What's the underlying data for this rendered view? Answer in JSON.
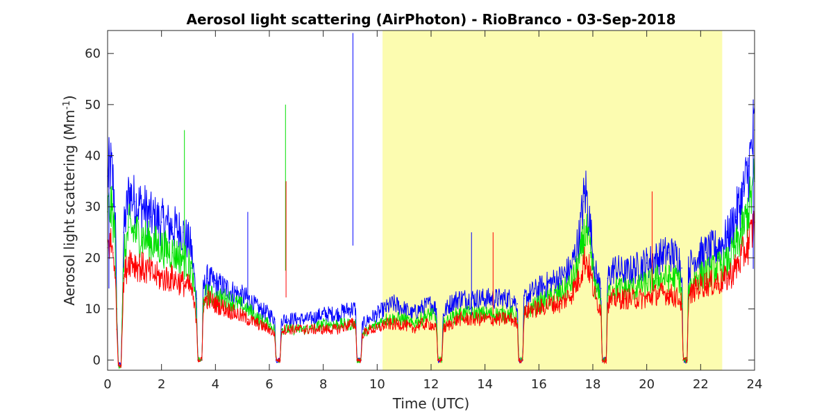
{
  "chart_data": {
    "type": "line",
    "title": "Aerosol light scattering (AirPhoton) - RioBranco - 03-Sep-2018",
    "xlabel": "Time (UTC)",
    "ylabel_main": "Aerosol light scattering (Mm",
    "ylabel_sup": "-1",
    "ylabel_close": ")",
    "xlim": [
      0,
      24
    ],
    "ylim": [
      -2,
      64.5
    ],
    "xticks": [
      0,
      2,
      4,
      6,
      8,
      10,
      12,
      14,
      16,
      18,
      20,
      22,
      24
    ],
    "yticks": [
      0,
      10,
      20,
      30,
      40,
      50,
      60
    ],
    "grid": false,
    "highlight_band": {
      "x0": 10.2,
      "x1": 22.8,
      "color": "#fcfcb0"
    },
    "series": [
      {
        "color": "#0000ff",
        "x": [
          0,
          0.1,
          0.2,
          0.28,
          0.34,
          0.4,
          0.5,
          0.6,
          0.8,
          1.0,
          1.3,
          1.6,
          2.0,
          2.4,
          2.8,
          3.1,
          3.3,
          3.35,
          3.5,
          3.55,
          3.7,
          4.0,
          4.4,
          4.8,
          5.2,
          5.6,
          6.0,
          6.2,
          6.25,
          6.4,
          6.45,
          6.7,
          7.0,
          7.5,
          8.0,
          8.5,
          9.0,
          9.2,
          9.25,
          9.4,
          9.45,
          9.7,
          10.0,
          10.3,
          10.6,
          11.0,
          11.3,
          11.6,
          12.0,
          12.2,
          12.25,
          12.4,
          12.45,
          12.7,
          13.0,
          13.5,
          14.0,
          14.5,
          15.0,
          15.2,
          15.25,
          15.4,
          15.45,
          15.7,
          16.0,
          16.4,
          16.8,
          17.2,
          17.5,
          17.65,
          17.75,
          17.9,
          18.1,
          18.3,
          18.35,
          18.5,
          18.55,
          18.8,
          19.2,
          19.6,
          20.0,
          20.4,
          20.8,
          21.2,
          21.3,
          21.35,
          21.5,
          21.55,
          21.8,
          22.2,
          22.6,
          23.0,
          23.3,
          23.6,
          23.8,
          24.0
        ],
        "y": [
          36,
          38,
          35,
          30,
          10,
          -1,
          -1,
          25,
          33,
          31,
          30,
          28,
          27,
          26,
          25,
          22,
          12,
          0,
          0,
          14,
          16,
          15,
          14,
          13,
          12,
          10,
          9,
          8,
          0,
          0,
          8,
          8,
          8,
          8,
          9,
          9,
          10,
          10,
          0,
          0,
          7,
          8,
          9,
          10,
          11,
          10,
          9,
          10,
          11,
          10,
          0,
          0,
          9,
          11,
          12,
          12,
          12,
          12,
          12,
          11,
          0,
          0,
          12,
          13,
          14,
          15,
          16,
          18,
          24,
          31,
          33,
          26,
          17,
          14,
          0,
          0,
          16,
          18,
          17,
          18,
          19,
          20,
          21,
          20,
          18,
          0,
          0,
          18,
          20,
          21,
          22,
          24,
          28,
          33,
          38,
          45
        ]
      },
      {
        "color": "#00e000",
        "x": [
          0,
          0.1,
          0.2,
          0.28,
          0.34,
          0.4,
          0.5,
          0.6,
          0.8,
          1.0,
          1.3,
          1.6,
          2.0,
          2.4,
          2.8,
          3.1,
          3.3,
          3.35,
          3.5,
          3.55,
          3.7,
          4.0,
          4.4,
          4.8,
          5.2,
          5.6,
          6.0,
          6.2,
          6.25,
          6.4,
          6.45,
          6.7,
          7.0,
          7.5,
          8.0,
          8.5,
          9.0,
          9.2,
          9.25,
          9.4,
          9.45,
          9.7,
          10.0,
          10.3,
          10.6,
          11.0,
          11.3,
          11.6,
          12.0,
          12.2,
          12.25,
          12.4,
          12.45,
          12.7,
          13.0,
          13.5,
          14.0,
          14.5,
          15.0,
          15.2,
          15.25,
          15.4,
          15.45,
          15.7,
          16.0,
          16.4,
          16.8,
          17.2,
          17.5,
          17.65,
          17.75,
          17.9,
          18.1,
          18.3,
          18.35,
          18.5,
          18.55,
          18.8,
          19.2,
          19.6,
          20.0,
          20.4,
          20.8,
          21.2,
          21.3,
          21.35,
          21.5,
          21.55,
          21.8,
          22.2,
          22.6,
          23.0,
          23.3,
          23.6,
          23.8,
          24.0
        ],
        "y": [
          29,
          30,
          28,
          24,
          8,
          -1,
          -1,
          20,
          26,
          25,
          24,
          23,
          22,
          21,
          20,
          18,
          10,
          0,
          0,
          12,
          13,
          12,
          12,
          11,
          10,
          8,
          7,
          6,
          0,
          0,
          6,
          6,
          6,
          6,
          7,
          7,
          7,
          7,
          0,
          0,
          5,
          6,
          7,
          8,
          8,
          8,
          7,
          8,
          9,
          8,
          0,
          0,
          7,
          8,
          9,
          9,
          9,
          9,
          9,
          8,
          0,
          0,
          9,
          10,
          11,
          12,
          13,
          15,
          19,
          24,
          25,
          21,
          14,
          12,
          0,
          0,
          13,
          14,
          14,
          14,
          15,
          16,
          16,
          16,
          14,
          0,
          0,
          14,
          16,
          17,
          18,
          19,
          22,
          26,
          30,
          35
        ]
      },
      {
        "color": "#ff0000",
        "x": [
          0,
          0.1,
          0.2,
          0.28,
          0.34,
          0.4,
          0.5,
          0.6,
          0.8,
          1.0,
          1.3,
          1.6,
          2.0,
          2.4,
          2.8,
          3.1,
          3.3,
          3.35,
          3.5,
          3.55,
          3.7,
          4.0,
          4.4,
          4.8,
          5.2,
          5.6,
          6.0,
          6.2,
          6.25,
          6.4,
          6.45,
          6.7,
          7.0,
          7.5,
          8.0,
          8.5,
          9.0,
          9.2,
          9.25,
          9.4,
          9.45,
          9.7,
          10.0,
          10.3,
          10.6,
          11.0,
          11.3,
          11.6,
          12.0,
          12.2,
          12.25,
          12.4,
          12.45,
          12.7,
          13.0,
          13.5,
          14.0,
          14.5,
          15.0,
          15.2,
          15.25,
          15.4,
          15.45,
          15.7,
          16.0,
          16.4,
          16.8,
          17.2,
          17.5,
          17.65,
          17.75,
          17.9,
          18.1,
          18.3,
          18.35,
          18.5,
          18.55,
          18.8,
          19.2,
          19.6,
          20.0,
          20.4,
          20.8,
          21.2,
          21.3,
          21.35,
          21.5,
          21.55,
          21.8,
          22.2,
          22.6,
          23.0,
          23.3,
          23.6,
          23.8,
          24.0
        ],
        "y": [
          22,
          23,
          21,
          18,
          6,
          -1,
          -1,
          16,
          20,
          19,
          18,
          17,
          16,
          16,
          15,
          14,
          8,
          0,
          0,
          11,
          12,
          11,
          10,
          9,
          8,
          7,
          6,
          5,
          0,
          0,
          6,
          6,
          6,
          6,
          6,
          6,
          7,
          7,
          0,
          0,
          5,
          6,
          6,
          7,
          7,
          7,
          6,
          7,
          7,
          6,
          0,
          0,
          6,
          7,
          8,
          8,
          8,
          8,
          8,
          7,
          0,
          0,
          9,
          10,
          10,
          11,
          11,
          13,
          16,
          19,
          20,
          17,
          12,
          10,
          0,
          0,
          11,
          12,
          12,
          12,
          12,
          13,
          13,
          12,
          11,
          0,
          0,
          12,
          14,
          15,
          15,
          16,
          18,
          21,
          23,
          27
        ]
      }
    ],
    "spikes": [
      {
        "x": 0.05,
        "y": 40,
        "color": "#0000ff"
      },
      {
        "x": 2.85,
        "y": 45,
        "color": "#00e000"
      },
      {
        "x": 5.2,
        "y": 29,
        "color": "#0000ff"
      },
      {
        "x": 6.6,
        "y": 50,
        "color": "#00e000"
      },
      {
        "x": 6.62,
        "y": 35,
        "color": "#ff0000"
      },
      {
        "x": 9.1,
        "y": 64,
        "color": "#0000ff"
      },
      {
        "x": 13.5,
        "y": 25,
        "color": "#0000ff"
      },
      {
        "x": 14.3,
        "y": 25,
        "color": "#ff0000"
      },
      {
        "x": 20.2,
        "y": 33,
        "color": "#ff0000"
      },
      {
        "x": 23.95,
        "y": 51,
        "color": "#0000ff"
      }
    ]
  }
}
